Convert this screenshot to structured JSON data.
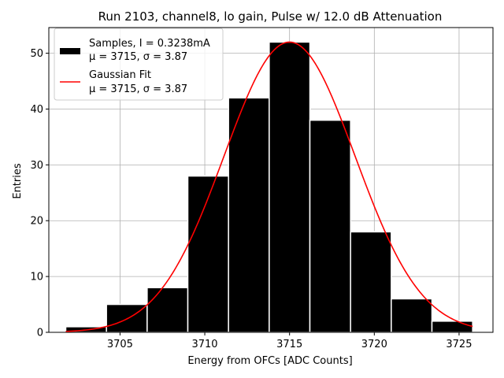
{
  "chart_data": {
    "type": "bar",
    "title": "Run 2103, channel8, lo gain, Pulse w/ 12.0 dB Attenuation",
    "xlabel": "Energy from OFCs [ADC Counts]",
    "ylabel": "Entries",
    "xlim": [
      3700.8,
      3727.0
    ],
    "ylim": [
      0,
      54.6
    ],
    "x_ticks": [
      3705,
      3710,
      3715,
      3720,
      3725
    ],
    "y_ticks": [
      0,
      10,
      20,
      30,
      40,
      50
    ],
    "grid": true,
    "legend_position": "top-left",
    "histogram": {
      "bin_width": 2.4,
      "bins": [
        {
          "start": 3701.8,
          "end": 3704.2,
          "count": 1
        },
        {
          "start": 3704.2,
          "end": 3706.6,
          "count": 5
        },
        {
          "start": 3706.6,
          "end": 3709.0,
          "count": 8
        },
        {
          "start": 3709.0,
          "end": 3711.4,
          "count": 28
        },
        {
          "start": 3711.4,
          "end": 3713.8,
          "count": 42
        },
        {
          "start": 3713.8,
          "end": 3716.2,
          "count": 52
        },
        {
          "start": 3716.2,
          "end": 3718.6,
          "count": 38
        },
        {
          "start": 3718.6,
          "end": 3721.0,
          "count": 18
        },
        {
          "start": 3721.0,
          "end": 3723.4,
          "count": 6
        },
        {
          "start": 3723.4,
          "end": 3725.8,
          "count": 2
        }
      ],
      "color": "#000000",
      "edge_color": "#ffffff"
    },
    "fit": {
      "type": "gaussian",
      "amplitude": 52,
      "mu": 3715,
      "sigma": 3.87,
      "x_range": [
        3701.8,
        3725.8
      ],
      "color": "#ff0000"
    },
    "legend": [
      {
        "symbol": "bar",
        "color": "#000000",
        "line1": "Samples, I = 0.3238mA",
        "line2": "μ = 3715, σ = 3.87"
      },
      {
        "symbol": "line",
        "color": "#ff0000",
        "line1": "Gaussian Fit",
        "line2": "μ = 3715, σ = 3.87"
      }
    ]
  }
}
